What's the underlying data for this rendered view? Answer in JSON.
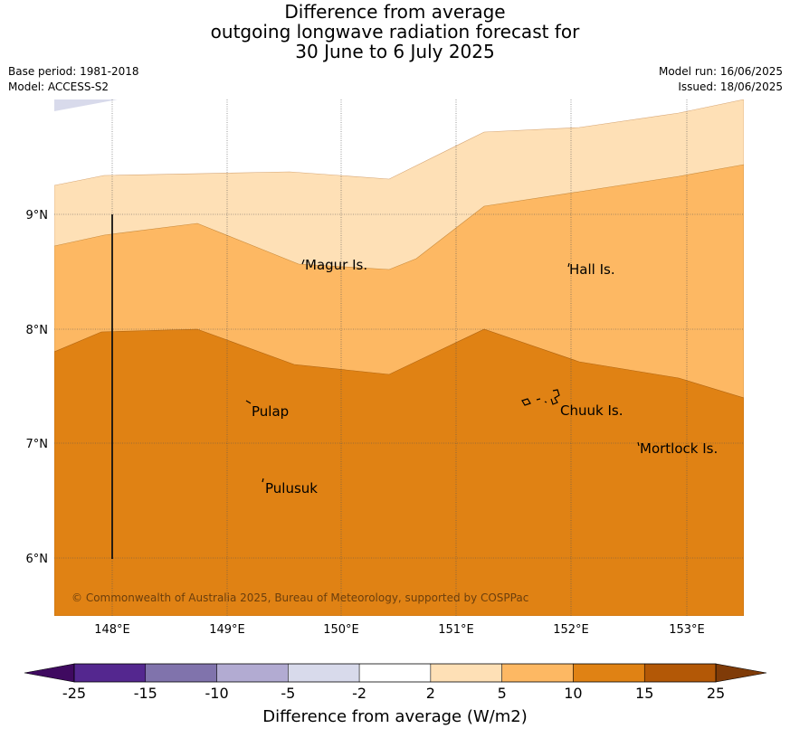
{
  "title": {
    "line1": "Difference from average",
    "line2": "outgoing longwave radiation forecast for",
    "line3": "30 June to 6 July 2025"
  },
  "meta": {
    "base_period": "Base period: 1981-2018",
    "model": "Model: ACCESS-S2",
    "model_run": "Model run: 16/06/2025",
    "issued": "Issued: 18/06/2025"
  },
  "map": {
    "lon_ticks": [
      "148°E",
      "149°E",
      "150°E",
      "151°E",
      "152°E",
      "153°E"
    ],
    "lat_ticks": [
      "9°N",
      "8°N",
      "7°N",
      "6°N"
    ],
    "places": [
      {
        "name": "Magur Is."
      },
      {
        "name": "Hall Is."
      },
      {
        "name": "Pulap"
      },
      {
        "name": "Chuuk Is."
      },
      {
        "name": "Mortlock Is."
      },
      {
        "name": "Pulusuk"
      }
    ],
    "copyright": "© Commonwealth of Australia 2025, Bureau of Meteorology, supported by COSPPac"
  },
  "colorbar": {
    "label": "Difference from average (W/m2)",
    "ticks": [
      "-25",
      "-15",
      "-10",
      "-5",
      "-2",
      "2",
      "5",
      "10",
      "15",
      "25"
    ],
    "colors": {
      "below_min": "#3f0a60",
      "bins": [
        "#54278f",
        "#8073ac",
        "#b2abd2",
        "#d8daeb",
        "#ffffff",
        "#fee0b6",
        "#fdb863",
        "#e08214",
        "#b35806"
      ],
      "above_max": "#7f3b08"
    }
  }
}
